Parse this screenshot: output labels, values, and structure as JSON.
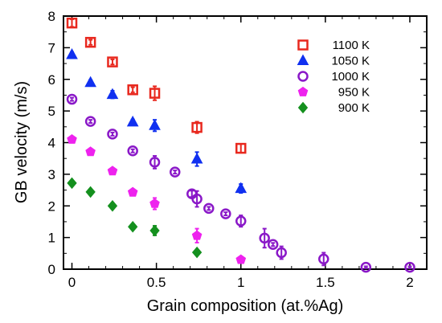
{
  "chart_data": {
    "type": "scatter",
    "xlabel": "Grain composition (at.%Ag)",
    "ylabel": "GB velocity (m/s)",
    "xlim": [
      -0.05,
      2.1
    ],
    "ylim": [
      0,
      8
    ],
    "xticks": [
      0,
      0.5,
      1,
      1.5,
      2
    ],
    "xtick_labels": [
      "0",
      "0.5",
      "1",
      "1.5",
      "2"
    ],
    "yticks": [
      0,
      1,
      2,
      3,
      4,
      5,
      6,
      7,
      8
    ],
    "ytick_labels": [
      "0",
      "1",
      "2",
      "3",
      "4",
      "5",
      "6",
      "7",
      "8"
    ],
    "grid": false,
    "legend_position": "top-right",
    "series": [
      {
        "name": "1100 K",
        "marker": "square",
        "color": "#e8281e",
        "points": [
          {
            "x": 0.0,
            "y": 7.78,
            "err": 0.12
          },
          {
            "x": 0.11,
            "y": 7.17,
            "err": 0.08
          },
          {
            "x": 0.24,
            "y": 6.55,
            "err": 0.08
          },
          {
            "x": 0.36,
            "y": 5.67,
            "err": 0.08
          },
          {
            "x": 0.49,
            "y": 5.56,
            "err": 0.22
          },
          {
            "x": 0.74,
            "y": 4.48,
            "err": 0.18
          },
          {
            "x": 1.0,
            "y": 3.82,
            "err": 0.14
          }
        ]
      },
      {
        "name": "1050 K",
        "marker": "triangle",
        "color": "#1030f0",
        "points": [
          {
            "x": 0.0,
            "y": 6.78,
            "err": 0.08
          },
          {
            "x": 0.11,
            "y": 5.9,
            "err": 0.08
          },
          {
            "x": 0.24,
            "y": 5.52,
            "err": 0.12
          },
          {
            "x": 0.36,
            "y": 4.65,
            "err": 0.08
          },
          {
            "x": 0.49,
            "y": 4.54,
            "err": 0.18
          },
          {
            "x": 0.74,
            "y": 3.48,
            "err": 0.22
          },
          {
            "x": 1.0,
            "y": 2.55,
            "err": 0.14
          }
        ]
      },
      {
        "name": "1000 K",
        "marker": "circle",
        "color": "#8a18c8",
        "points": [
          {
            "x": 0.0,
            "y": 5.37,
            "err": 0.05
          },
          {
            "x": 0.11,
            "y": 4.67,
            "err": 0.05
          },
          {
            "x": 0.24,
            "y": 4.27,
            "err": 0.05
          },
          {
            "x": 0.36,
            "y": 3.74,
            "err": 0.05
          },
          {
            "x": 0.49,
            "y": 3.38,
            "err": 0.2
          },
          {
            "x": 0.61,
            "y": 3.07,
            "err": 0.05
          },
          {
            "x": 0.71,
            "y": 2.38,
            "err": 0.1
          },
          {
            "x": 0.74,
            "y": 2.22,
            "err": 0.25
          },
          {
            "x": 0.81,
            "y": 1.92,
            "err": 0.05
          },
          {
            "x": 0.91,
            "y": 1.75,
            "err": 0.05
          },
          {
            "x": 1.0,
            "y": 1.52,
            "err": 0.18
          },
          {
            "x": 1.14,
            "y": 0.98,
            "err": 0.3
          },
          {
            "x": 1.19,
            "y": 0.78,
            "err": 0.05
          },
          {
            "x": 1.24,
            "y": 0.52,
            "err": 0.2
          },
          {
            "x": 1.49,
            "y": 0.32,
            "err": 0.2
          },
          {
            "x": 1.74,
            "y": 0.06,
            "err": 0.03
          },
          {
            "x": 2.0,
            "y": 0.06,
            "err": 0.03
          }
        ]
      },
      {
        "name": "950 K",
        "marker": "pentagon",
        "color": "#ee22ee",
        "points": [
          {
            "x": 0.0,
            "y": 4.1,
            "err": 0.05
          },
          {
            "x": 0.11,
            "y": 3.71,
            "err": 0.05
          },
          {
            "x": 0.24,
            "y": 3.1,
            "err": 0.05
          },
          {
            "x": 0.36,
            "y": 2.43,
            "err": 0.05
          },
          {
            "x": 0.49,
            "y": 2.07,
            "err": 0.18
          },
          {
            "x": 0.74,
            "y": 1.06,
            "err": 0.22
          },
          {
            "x": 1.0,
            "y": 0.3,
            "err": 0.05
          }
        ]
      },
      {
        "name": "900 K",
        "marker": "diamond",
        "color": "#14901e",
        "points": [
          {
            "x": 0.0,
            "y": 2.72,
            "err": 0.05
          },
          {
            "x": 0.11,
            "y": 2.44,
            "err": 0.05
          },
          {
            "x": 0.24,
            "y": 2.0,
            "err": 0.05
          },
          {
            "x": 0.36,
            "y": 1.34,
            "err": 0.05
          },
          {
            "x": 0.49,
            "y": 1.22,
            "err": 0.15
          },
          {
            "x": 0.74,
            "y": 0.53,
            "err": 0.05
          }
        ]
      }
    ]
  }
}
